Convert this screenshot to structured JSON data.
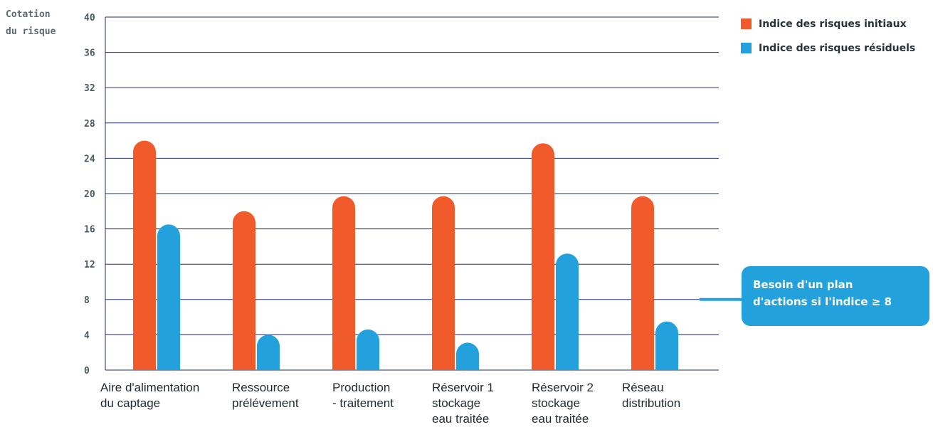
{
  "chart_data": {
    "type": "bar",
    "ylabel": [
      "Cotation",
      "du risque"
    ],
    "ylim": [
      0,
      40
    ],
    "yticks": [
      0,
      4,
      8,
      12,
      16,
      20,
      24,
      28,
      32,
      36,
      40
    ],
    "grid": true,
    "legend_position": "top-right",
    "categories": [
      [
        "Aire d'alimentation",
        "du captage"
      ],
      [
        "Ressource",
        "prélévement"
      ],
      [
        "Production",
        "- traitement"
      ],
      [
        "Réservoir 1",
        "stockage",
        "eau traitée"
      ],
      [
        "Réservoir 2",
        "stockage",
        "eau traitée"
      ],
      [
        "Réseau",
        "distribution"
      ]
    ],
    "series": [
      {
        "name": "Indice des risques initiaux",
        "color": "#f15a2b",
        "values": [
          26,
          18,
          19.7,
          19.7,
          25.7,
          19.7
        ]
      },
      {
        "name": "Indice des risques résiduels",
        "color": "#22a1dc",
        "values": [
          16.5,
          4,
          4.6,
          3.1,
          13.2,
          5.5
        ]
      }
    ],
    "callout": {
      "lines": [
        "Besoin d'un plan",
        "d'actions si l'indice ≥ 8"
      ],
      "color": "#22a1dc",
      "threshold": 8
    }
  }
}
